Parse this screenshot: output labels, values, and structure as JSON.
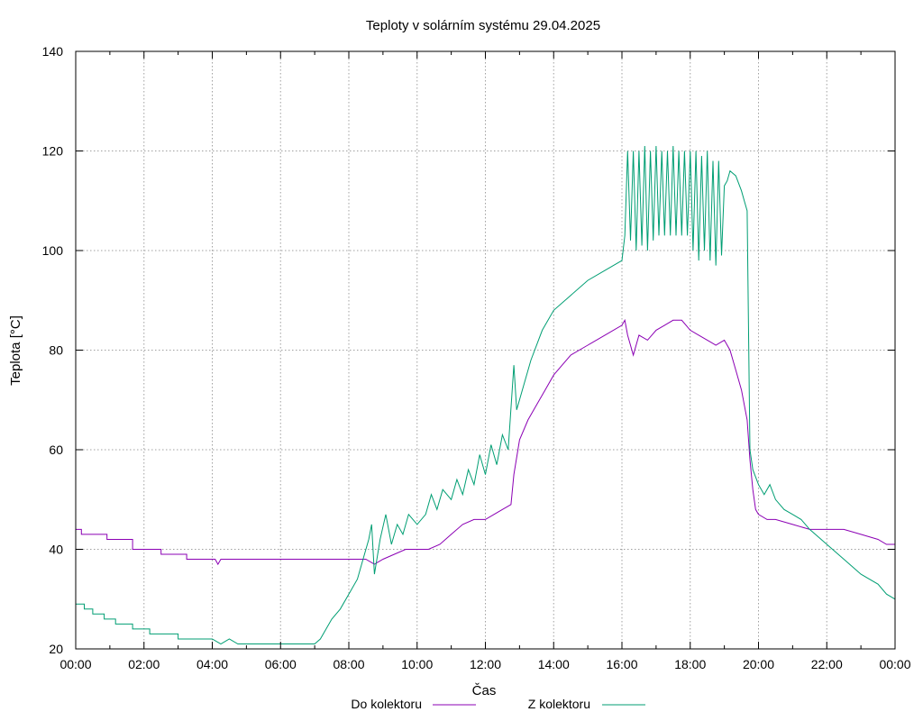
{
  "chart_data": {
    "type": "line",
    "title": "Teploty v solárním systému 29.04.2025",
    "xlabel": "Čas",
    "ylabel": "Teplota [°C]",
    "xlim": [
      "00:00",
      "24:00"
    ],
    "ylim": [
      20,
      140
    ],
    "x_ticks": [
      "00:00",
      "02:00",
      "04:00",
      "06:00",
      "08:00",
      "10:00",
      "12:00",
      "14:00",
      "16:00",
      "18:00",
      "20:00",
      "22:00",
      "00:00"
    ],
    "y_ticks": [
      20,
      40,
      60,
      80,
      100,
      120,
      140
    ],
    "grid": true,
    "legend_position": "bottom",
    "series": [
      {
        "name": "Do kolektoru",
        "color": "#8b00b4",
        "points": [
          [
            "00:00",
            44
          ],
          [
            "00:10",
            44
          ],
          [
            "00:10",
            43
          ],
          [
            "00:55",
            43
          ],
          [
            "00:55",
            42
          ],
          [
            "01:40",
            42
          ],
          [
            "01:40",
            40
          ],
          [
            "02:30",
            40
          ],
          [
            "02:30",
            39
          ],
          [
            "03:15",
            39
          ],
          [
            "03:15",
            38
          ],
          [
            "04:05",
            38
          ],
          [
            "04:10",
            37
          ],
          [
            "04:15",
            38
          ],
          [
            "08:30",
            38
          ],
          [
            "08:45",
            37
          ],
          [
            "09:00",
            38
          ],
          [
            "09:20",
            39
          ],
          [
            "09:40",
            40
          ],
          [
            "10:20",
            40
          ],
          [
            "10:40",
            41
          ],
          [
            "11:00",
            43
          ],
          [
            "11:20",
            45
          ],
          [
            "11:40",
            46
          ],
          [
            "12:00",
            46
          ],
          [
            "12:15",
            47
          ],
          [
            "12:30",
            48
          ],
          [
            "12:45",
            49
          ],
          [
            "12:50",
            55
          ],
          [
            "13:00",
            62
          ],
          [
            "13:15",
            66
          ],
          [
            "13:30",
            69
          ],
          [
            "13:45",
            72
          ],
          [
            "14:00",
            75
          ],
          [
            "14:15",
            77
          ],
          [
            "14:30",
            79
          ],
          [
            "15:00",
            81
          ],
          [
            "15:30",
            83
          ],
          [
            "16:00",
            85
          ],
          [
            "16:05",
            86
          ],
          [
            "16:10",
            83
          ],
          [
            "16:20",
            79
          ],
          [
            "16:30",
            83
          ],
          [
            "16:45",
            82
          ],
          [
            "17:00",
            84
          ],
          [
            "17:15",
            85
          ],
          [
            "17:30",
            86
          ],
          [
            "17:45",
            86
          ],
          [
            "18:00",
            84
          ],
          [
            "18:15",
            83
          ],
          [
            "18:30",
            82
          ],
          [
            "18:45",
            81
          ],
          [
            "19:00",
            82
          ],
          [
            "19:10",
            80
          ],
          [
            "19:20",
            76
          ],
          [
            "19:30",
            72
          ],
          [
            "19:40",
            66
          ],
          [
            "19:45",
            58
          ],
          [
            "19:50",
            52
          ],
          [
            "19:55",
            48
          ],
          [
            "20:00",
            47
          ],
          [
            "20:15",
            46
          ],
          [
            "20:30",
            46
          ],
          [
            "21:00",
            45
          ],
          [
            "21:30",
            44
          ],
          [
            "22:30",
            44
          ],
          [
            "23:00",
            43
          ],
          [
            "23:30",
            42
          ],
          [
            "23:45",
            41
          ],
          [
            "24:00",
            41
          ]
        ]
      },
      {
        "name": "Z kolektoru",
        "color": "#009e73",
        "points": [
          [
            "00:00",
            29
          ],
          [
            "00:15",
            29
          ],
          [
            "00:15",
            28
          ],
          [
            "00:30",
            28
          ],
          [
            "00:30",
            27
          ],
          [
            "00:50",
            27
          ],
          [
            "00:50",
            26
          ],
          [
            "01:10",
            26
          ],
          [
            "01:10",
            25
          ],
          [
            "01:40",
            25
          ],
          [
            "01:40",
            24
          ],
          [
            "02:10",
            24
          ],
          [
            "02:10",
            23
          ],
          [
            "03:00",
            23
          ],
          [
            "03:00",
            22
          ],
          [
            "04:00",
            22
          ],
          [
            "04:15",
            21
          ],
          [
            "04:30",
            22
          ],
          [
            "04:45",
            21
          ],
          [
            "07:00",
            21
          ],
          [
            "07:10",
            22
          ],
          [
            "07:20",
            24
          ],
          [
            "07:30",
            26
          ],
          [
            "07:45",
            28
          ],
          [
            "08:00",
            31
          ],
          [
            "08:15",
            34
          ],
          [
            "08:25",
            38
          ],
          [
            "08:35",
            42
          ],
          [
            "08:40",
            45
          ],
          [
            "08:45",
            35
          ],
          [
            "08:55",
            42
          ],
          [
            "09:05",
            47
          ],
          [
            "09:15",
            41
          ],
          [
            "09:25",
            45
          ],
          [
            "09:35",
            43
          ],
          [
            "09:45",
            47
          ],
          [
            "10:00",
            45
          ],
          [
            "10:15",
            47
          ],
          [
            "10:25",
            51
          ],
          [
            "10:35",
            48
          ],
          [
            "10:45",
            52
          ],
          [
            "11:00",
            50
          ],
          [
            "11:10",
            54
          ],
          [
            "11:20",
            51
          ],
          [
            "11:30",
            56
          ],
          [
            "11:40",
            53
          ],
          [
            "11:50",
            59
          ],
          [
            "12:00",
            55
          ],
          [
            "12:10",
            61
          ],
          [
            "12:20",
            57
          ],
          [
            "12:30",
            63
          ],
          [
            "12:40",
            60
          ],
          [
            "12:50",
            77
          ],
          [
            "12:55",
            68
          ],
          [
            "13:05",
            72
          ],
          [
            "13:20",
            78
          ],
          [
            "13:40",
            84
          ],
          [
            "14:00",
            88
          ],
          [
            "14:30",
            91
          ],
          [
            "15:00",
            94
          ],
          [
            "15:30",
            96
          ],
          [
            "16:00",
            98
          ],
          [
            "16:05",
            103
          ],
          [
            "16:10",
            120
          ],
          [
            "16:15",
            102
          ],
          [
            "16:20",
            120
          ],
          [
            "16:25",
            100
          ],
          [
            "16:30",
            120
          ],
          [
            "16:35",
            101
          ],
          [
            "16:40",
            121
          ],
          [
            "16:45",
            100
          ],
          [
            "16:50",
            120
          ],
          [
            "16:55",
            102
          ],
          [
            "17:00",
            121
          ],
          [
            "17:05",
            103
          ],
          [
            "17:10",
            120
          ],
          [
            "17:15",
            103
          ],
          [
            "17:20",
            120
          ],
          [
            "17:25",
            103
          ],
          [
            "17:30",
            121
          ],
          [
            "17:35",
            103
          ],
          [
            "17:40",
            120
          ],
          [
            "17:45",
            103
          ],
          [
            "17:50",
            120
          ],
          [
            "17:55",
            103
          ],
          [
            "18:00",
            120
          ],
          [
            "18:05",
            100
          ],
          [
            "18:10",
            120
          ],
          [
            "18:15",
            98
          ],
          [
            "18:20",
            119
          ],
          [
            "18:25",
            100
          ],
          [
            "18:30",
            120
          ],
          [
            "18:35",
            98
          ],
          [
            "18:40",
            118
          ],
          [
            "18:45",
            97
          ],
          [
            "18:50",
            118
          ],
          [
            "18:55",
            99
          ],
          [
            "19:00",
            113
          ],
          [
            "19:05",
            114
          ],
          [
            "19:10",
            116
          ],
          [
            "19:20",
            115
          ],
          [
            "19:30",
            112
          ],
          [
            "19:35",
            110
          ],
          [
            "19:40",
            108
          ],
          [
            "19:45",
            60
          ],
          [
            "19:50",
            56
          ],
          [
            "20:00",
            53
          ],
          [
            "20:10",
            51
          ],
          [
            "20:20",
            53
          ],
          [
            "20:30",
            50
          ],
          [
            "20:45",
            48
          ],
          [
            "21:00",
            47
          ],
          [
            "21:15",
            46
          ],
          [
            "21:30",
            44
          ],
          [
            "22:00",
            41
          ],
          [
            "22:30",
            38
          ],
          [
            "23:00",
            35
          ],
          [
            "23:30",
            33
          ],
          [
            "23:45",
            31
          ],
          [
            "24:00",
            30
          ]
        ]
      }
    ]
  }
}
